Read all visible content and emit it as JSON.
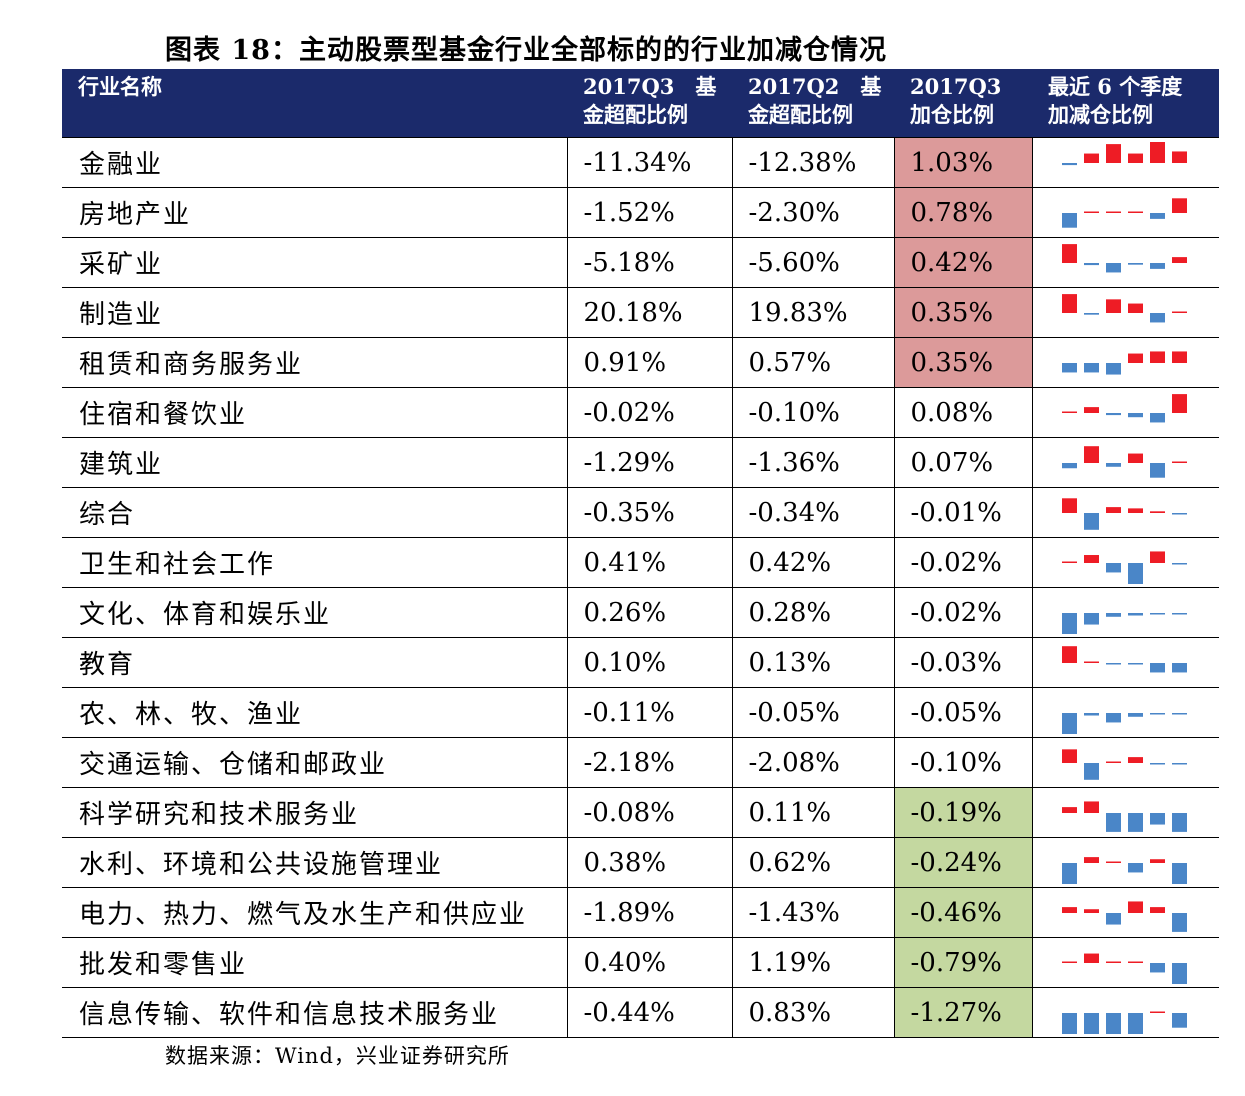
{
  "title": "图表 18：主动股票型基金行业全部标的的行业加减仓情况",
  "header": {
    "industry": "行业名称",
    "q3_line1": "2017Q3　基",
    "q3_line2": "金超配比例",
    "q2_line1": "2017Q2　基",
    "q2_line2": "金超配比例",
    "chg_line1": "2017Q3",
    "chg_line2": "加仓比例",
    "spark_line1": "最近 6 个季度",
    "spark_line2": "加减仓比例"
  },
  "colors": {
    "header_bg": "#1b2a6b",
    "pos_highlight": "#dc9a9a",
    "neg_highlight": "#c4d8a0",
    "bar_up": "#ee1c25",
    "bar_down": "#4a86c8"
  },
  "rows": [
    {
      "name": "金融业",
      "q3": "-11.34%",
      "q2": "-12.38%",
      "chg": "1.03%",
      "hl": "pos",
      "spark": [
        -0.1,
        0.45,
        0.9,
        0.45,
        1.0,
        0.55
      ]
    },
    {
      "name": "房地产业",
      "q3": "-1.52%",
      "q2": "-2.30%",
      "chg": "0.78%",
      "hl": "pos",
      "spark": [
        -0.7,
        0.06,
        0.06,
        0.06,
        -0.28,
        0.7
      ]
    },
    {
      "name": "采矿业",
      "q3": "-5.18%",
      "q2": "-5.60%",
      "chg": "0.42%",
      "hl": "pos",
      "spark": [
        0.9,
        -0.1,
        -0.45,
        -0.08,
        -0.28,
        0.28
      ]
    },
    {
      "name": "制造业",
      "q3": "20.18%",
      "q2": "19.83%",
      "chg": "0.35%",
      "hl": "pos",
      "spark": [
        0.9,
        -0.08,
        0.65,
        0.45,
        -0.45,
        0.06
      ]
    },
    {
      "name": "租赁和商务服务业",
      "q3": "0.91%",
      "q2": "0.57%",
      "chg": "0.35%",
      "hl": "pos",
      "spark": [
        -0.45,
        -0.45,
        -0.55,
        0.45,
        0.55,
        0.55
      ]
    },
    {
      "name": "住宿和餐饮业",
      "q3": "-0.02%",
      "q2": "-0.10%",
      "chg": "0.08%",
      "hl": "",
      "spark": [
        0,
        0.28,
        -0.1,
        -0.2,
        -0.45,
        0.9
      ]
    },
    {
      "name": "建筑业",
      "q3": "-1.29%",
      "q2": "-1.36%",
      "chg": "0.07%",
      "hl": "",
      "spark": [
        -0.25,
        0.8,
        -0.18,
        0.45,
        -0.7,
        0.06
      ]
    },
    {
      "name": "综合",
      "q3": "-0.35%",
      "q2": "-0.34%",
      "chg": "-0.01%",
      "hl": "",
      "spark": [
        0.7,
        -0.8,
        0.28,
        0.22,
        0.08,
        -0.04
      ]
    },
    {
      "name": "卫生和社会工作",
      "q3": "0.41%",
      "q2": "0.42%",
      "chg": "-0.02%",
      "hl": "",
      "spark": [
        0.06,
        0.38,
        -0.45,
        -1.0,
        0.55,
        -0.04
      ]
    },
    {
      "name": "文化、体育和娱乐业",
      "q3": "0.26%",
      "q2": "0.28%",
      "chg": "-0.02%",
      "hl": "",
      "spark": [
        -1.0,
        -0.55,
        -0.18,
        -0.12,
        -0.04,
        -0.04
      ]
    },
    {
      "name": "教育",
      "q3": "0.10%",
      "q2": "0.13%",
      "chg": "-0.03%",
      "hl": "",
      "spark": [
        0.8,
        0,
        -0.04,
        -0.04,
        -0.45,
        -0.45
      ]
    },
    {
      "name": "农、林、牧、渔业",
      "q3": "-0.11%",
      "q2": "-0.05%",
      "chg": "-0.05%",
      "hl": "",
      "spark": [
        -1.0,
        -0.12,
        -0.45,
        -0.18,
        -0.04,
        -0.04
      ]
    },
    {
      "name": "交通运输、仓储和邮政业",
      "q3": "-2.18%",
      "q2": "-2.08%",
      "chg": "-0.10%",
      "hl": "",
      "spark": [
        0.65,
        -0.8,
        0.06,
        0.28,
        -0.04,
        -0.04
      ]
    },
    {
      "name": "科学研究和技术服务业",
      "q3": "-0.08%",
      "q2": "0.11%",
      "chg": "-0.19%",
      "hl": "neg",
      "spark": [
        0.28,
        0.55,
        -0.9,
        -0.9,
        -0.55,
        -0.9
      ]
    },
    {
      "name": "水利、环境和公共设施管理业",
      "q3": "0.38%",
      "q2": "0.62%",
      "chg": "-0.24%",
      "hl": "neg",
      "spark": [
        -1.0,
        0.28,
        0.06,
        -0.45,
        0.18,
        -1.0
      ]
    },
    {
      "name": "电力、热力、燃气及水生产和供应业",
      "q3": "-1.89%",
      "q2": "-1.43%",
      "chg": "-0.46%",
      "hl": "neg",
      "spark": [
        0.28,
        0.18,
        -0.55,
        0.55,
        0.28,
        -0.9
      ]
    },
    {
      "name": "批发和零售业",
      "q3": "0.40%",
      "q2": "1.19%",
      "chg": "-0.79%",
      "hl": "neg",
      "spark": [
        0,
        0.45,
        0.06,
        0.06,
        -0.45,
        -1.0
      ]
    },
    {
      "name": "信息传输、软件和信息技术服务业",
      "q3": "-0.44%",
      "q2": "0.83%",
      "chg": "-1.27%",
      "hl": "neg",
      "spark": [
        -1.0,
        -1.0,
        -1.0,
        -1.0,
        0.06,
        -0.7
      ]
    }
  ],
  "source": "数据来源：Wind，兴业证券研究所"
}
